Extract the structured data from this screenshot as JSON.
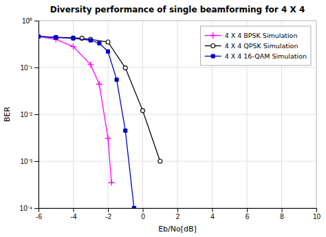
{
  "chart_data": {
    "type": "line",
    "title": "Diversity performance of single beamforming for 4 X 4",
    "x_label": "Eb/No[dB]",
    "y_label": "BER",
    "log": "y",
    "grid": true,
    "legend": "upper right",
    "xlim": [
      -6,
      10
    ],
    "ylim": [
      0.0001,
      1.0
    ],
    "xticks": [
      -6,
      -4,
      -2,
      0,
      2,
      4,
      6,
      8,
      10
    ],
    "yticks": [
      {
        "value": 0.0001,
        "label": "10⁻⁴"
      },
      {
        "value": 0.001,
        "label": "10⁻³"
      },
      {
        "value": 0.01,
        "label": "10⁻²"
      },
      {
        "value": 0.1,
        "label": "10⁻¹"
      },
      {
        "value": 1.0,
        "label": "10⁰"
      }
    ],
    "series": [
      {
        "name": "4 X 4 BPSK Simulation",
        "color": "#ff00ff",
        "marker": "plus",
        "x": [
          -6,
          -5,
          -4,
          -3,
          -2.5,
          -2,
          -1.8
        ],
        "values": [
          0.46,
          0.4,
          0.28,
          0.115,
          0.044,
          0.0031,
          0.00035
        ]
      },
      {
        "name": "4 X 4 QPSK Simulation",
        "color": "#000000",
        "marker": "circle",
        "x": [
          -6,
          -5,
          -4,
          -3.5,
          -3,
          -2,
          -1,
          0,
          1
        ],
        "values": [
          0.46,
          0.44,
          0.43,
          0.42,
          0.4,
          0.35,
          0.098,
          0.012,
          0.001
        ]
      },
      {
        "name": "4 X 4 16-QAM Simulation",
        "color": "#0000cc",
        "marker": "square",
        "x": [
          -6,
          -5,
          -4,
          -3,
          -2.5,
          -2,
          -1.5,
          -1,
          -0.5
        ],
        "values": [
          0.46,
          0.44,
          0.42,
          0.38,
          0.33,
          0.22,
          0.055,
          0.0045,
          0.0001
        ]
      }
    ]
  }
}
